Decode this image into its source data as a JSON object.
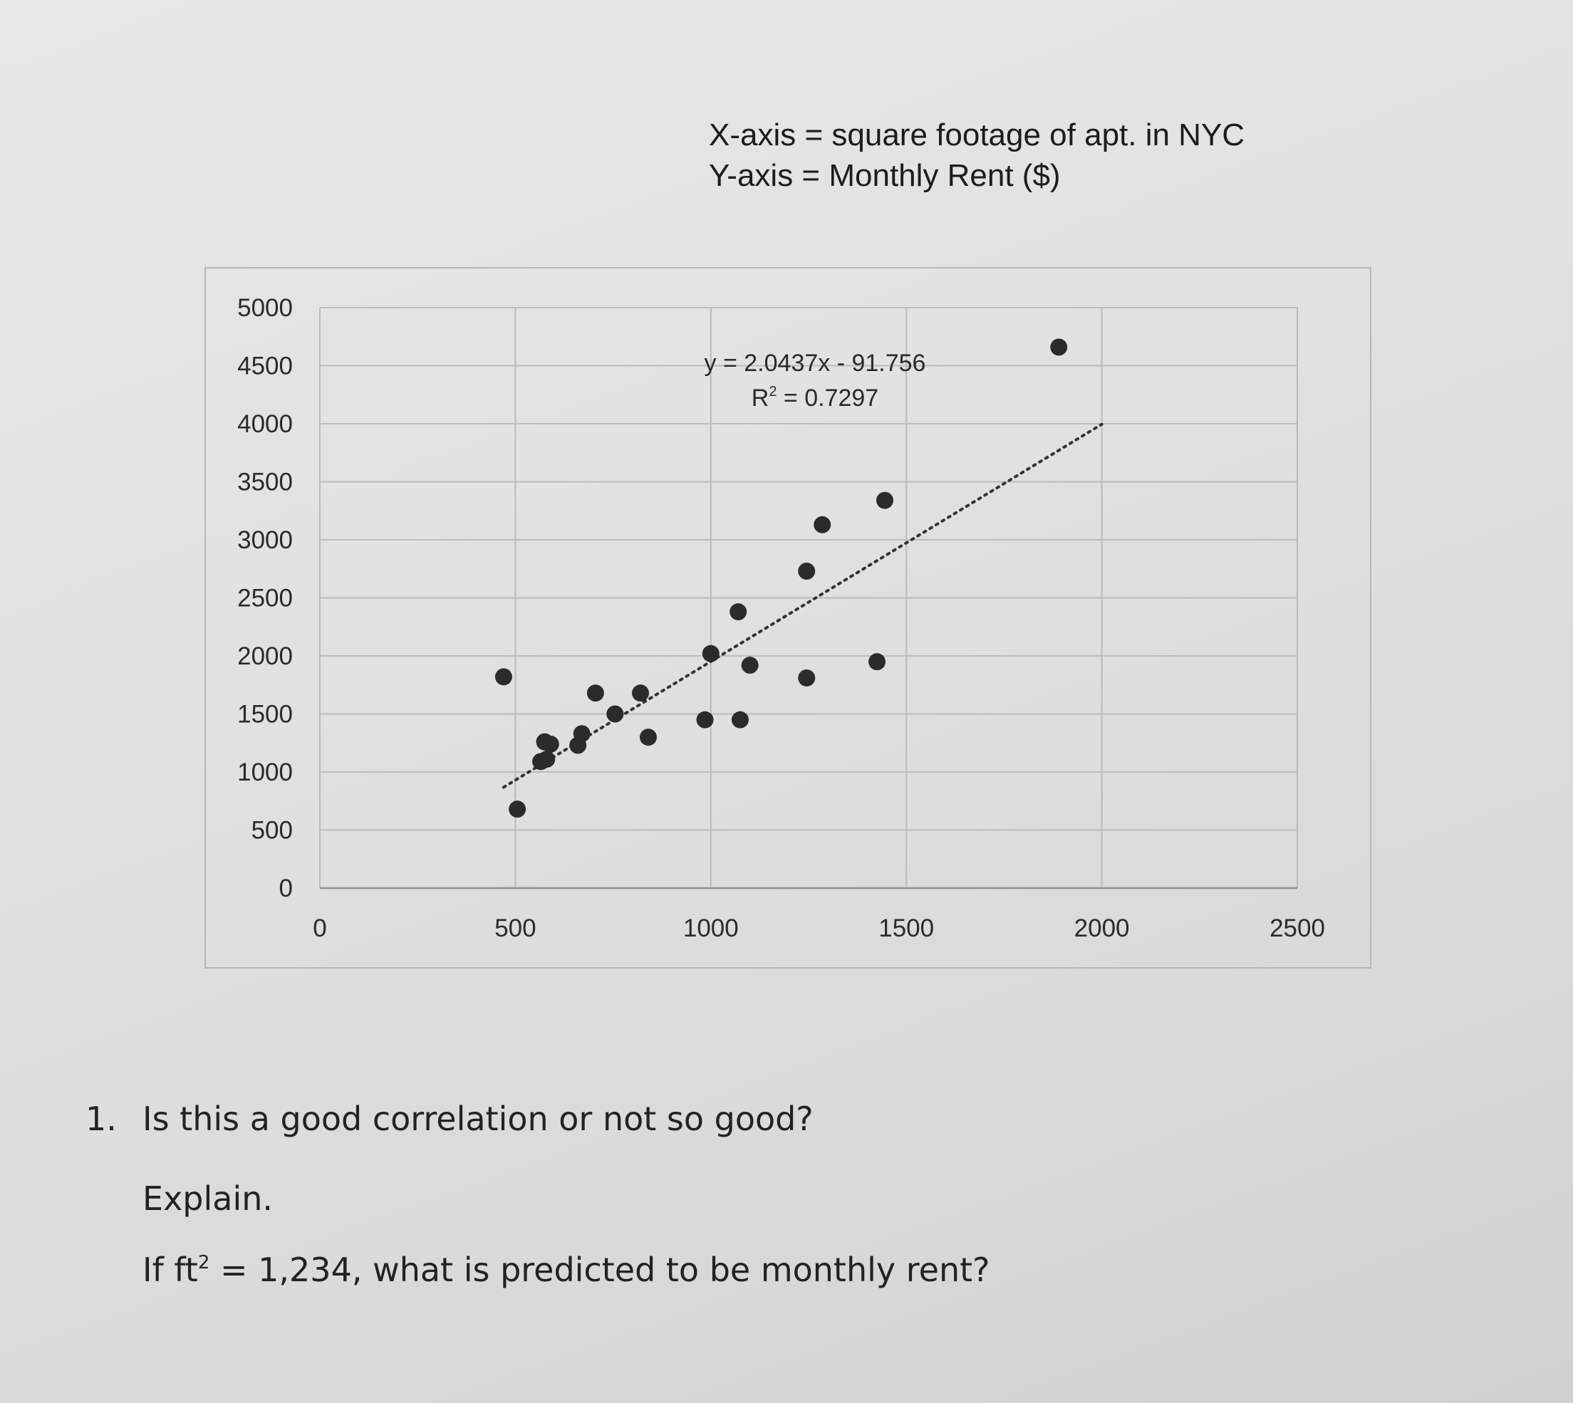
{
  "captions": {
    "x_axis": "X-axis = square footage of apt. in NYC",
    "y_axis": "Y-axis = Monthly Rent ($)"
  },
  "chart_data": {
    "type": "scatter",
    "title": "",
    "xlabel": "",
    "ylabel": "",
    "xlim": [
      0,
      2500
    ],
    "ylim": [
      0,
      5000
    ],
    "x_ticks": [
      "0",
      "500",
      "1000",
      "1500",
      "2000",
      "2500"
    ],
    "y_ticks": [
      "0",
      "500",
      "1000",
      "1500",
      "2000",
      "2500",
      "3000",
      "3500",
      "4000",
      "4500",
      "5000"
    ],
    "grid": true,
    "points": [
      {
        "x": 470,
        "y": 1820
      },
      {
        "x": 505,
        "y": 680
      },
      {
        "x": 565,
        "y": 1090
      },
      {
        "x": 580,
        "y": 1110
      },
      {
        "x": 575,
        "y": 1260
      },
      {
        "x": 590,
        "y": 1240
      },
      {
        "x": 660,
        "y": 1230
      },
      {
        "x": 670,
        "y": 1330
      },
      {
        "x": 705,
        "y": 1680
      },
      {
        "x": 755,
        "y": 1500
      },
      {
        "x": 820,
        "y": 1680
      },
      {
        "x": 840,
        "y": 1300
      },
      {
        "x": 985,
        "y": 1450
      },
      {
        "x": 1000,
        "y": 2020
      },
      {
        "x": 1070,
        "y": 2380
      },
      {
        "x": 1075,
        "y": 1450
      },
      {
        "x": 1100,
        "y": 1920
      },
      {
        "x": 1245,
        "y": 2730
      },
      {
        "x": 1245,
        "y": 1810
      },
      {
        "x": 1285,
        "y": 3130
      },
      {
        "x": 1425,
        "y": 1950
      },
      {
        "x": 1445,
        "y": 3340
      },
      {
        "x": 1890,
        "y": 4660
      }
    ],
    "trendline": {
      "type": "linear",
      "slope": 2.0437,
      "intercept": -91.756,
      "x_range": [
        470,
        2000
      ],
      "style": "dotted"
    },
    "annotations": {
      "equation": "y = 2.0437x - 91.756",
      "r_squared_prefix": "R",
      "r_squared_exp": "2",
      "r_squared_value": " = 0.7297"
    }
  },
  "questions": {
    "number": "1.",
    "q1": "Is this a good correlation or not so good?",
    "explain": "Explain.",
    "q2_prefix": "If ft",
    "q2_exp": "2",
    "q2_suffix": " = 1,234, what is predicted to be monthly rent?"
  }
}
